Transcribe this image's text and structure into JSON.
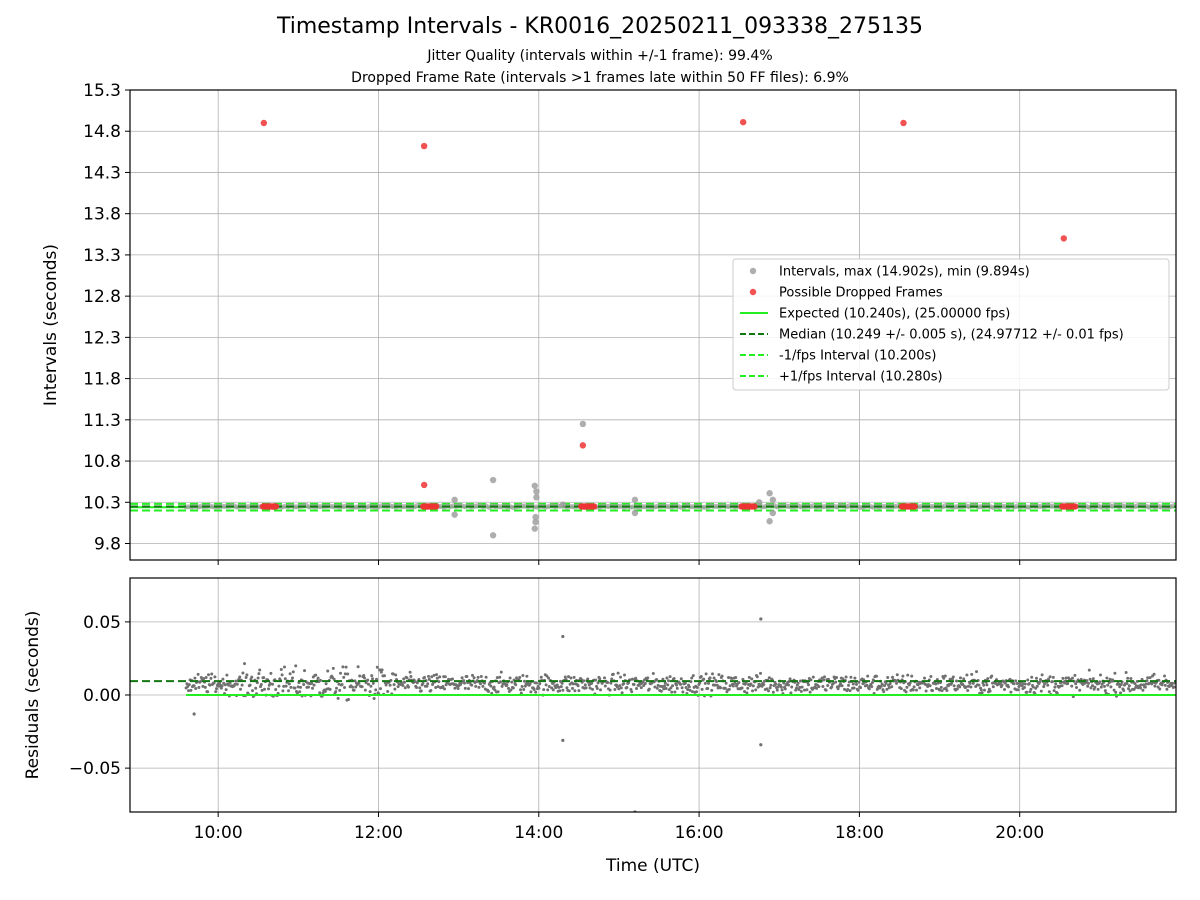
{
  "titles": {
    "main": "Timestamp Intervals - KR0016_20250211_093338_275135",
    "sub1": "Jitter Quality (intervals within +/-1 frame): 99.4%",
    "sub2": "Dropped Frame Rate (intervals >1 frames late within 50 FF files): 6.9%"
  },
  "colors": {
    "normal": "#a0a0a0",
    "dropped": "#ee3333",
    "expected": "#22ee22",
    "median": "#117711",
    "residual": "#707070"
  },
  "chart_data": [
    {
      "type": "scatter",
      "xlabel": "",
      "ylabel": "Intervals (seconds)",
      "xlim": [
        8.9,
        21.95
      ],
      "ylim": [
        9.6,
        15.3
      ],
      "y_ticks": [
        "9.8",
        "10.3",
        "10.8",
        "11.3",
        "11.8",
        "12.3",
        "12.8",
        "13.3",
        "13.8",
        "14.3",
        "14.8",
        "15.3"
      ],
      "grid": true,
      "legend_placement": "center-right",
      "legend": [
        "Intervals, max (14.902s), min (9.894s)",
        "Possible Dropped Frames",
        "Expected (10.240s), (25.00000 fps)",
        "Median (10.249 +/- 0.005 s), (24.97712 +/- 0.01 fps)",
        "-1/fps Interval (10.200s)",
        "+1/fps Interval (10.280s)"
      ],
      "expected": 10.24,
      "median": 10.249,
      "lower_fps_interval": 10.2,
      "upper_fps_interval": 10.28,
      "x_range": [
        9.6,
        21.95
      ],
      "dropped_clusters": [
        10.65,
        12.65,
        14.62,
        16.62,
        18.62,
        20.62
      ],
      "intervals_outliers": [
        {
          "x": 12.95,
          "y": 10.33
        },
        {
          "x": 12.95,
          "y": 10.15
        },
        {
          "x": 13.43,
          "y": 10.57
        },
        {
          "x": 13.43,
          "y": 9.9
        },
        {
          "x": 13.95,
          "y": 10.5
        },
        {
          "x": 13.97,
          "y": 10.43
        },
        {
          "x": 13.97,
          "y": 10.36
        },
        {
          "x": 13.96,
          "y": 10.12
        },
        {
          "x": 13.96,
          "y": 10.06
        },
        {
          "x": 13.95,
          "y": 9.98
        },
        {
          "x": 14.3,
          "y": 10.27
        },
        {
          "x": 14.55,
          "y": 11.25
        },
        {
          "x": 15.2,
          "y": 10.33
        },
        {
          "x": 15.2,
          "y": 10.17
        },
        {
          "x": 16.75,
          "y": 10.3
        },
        {
          "x": 16.88,
          "y": 10.41
        },
        {
          "x": 16.92,
          "y": 10.33
        },
        {
          "x": 16.92,
          "y": 10.17
        },
        {
          "x": 16.88,
          "y": 10.07
        }
      ],
      "dropped_points": [
        {
          "x": 10.57,
          "y": 14.9
        },
        {
          "x": 12.57,
          "y": 14.62
        },
        {
          "x": 12.57,
          "y": 10.51
        },
        {
          "x": 14.55,
          "y": 10.99
        },
        {
          "x": 16.55,
          "y": 14.91
        },
        {
          "x": 18.55,
          "y": 14.9
        },
        {
          "x": 20.55,
          "y": 13.5
        }
      ]
    },
    {
      "type": "scatter",
      "xlabel": "Time (UTC)",
      "ylabel": "Residuals (seconds)",
      "xlim": [
        8.9,
        21.95
      ],
      "ylim": [
        -0.08,
        0.08
      ],
      "x_ticks": [
        {
          "x": 10,
          "label": "10:00"
        },
        {
          "x": 12,
          "label": "12:00"
        },
        {
          "x": 14,
          "label": "14:00"
        },
        {
          "x": 16,
          "label": "16:00"
        },
        {
          "x": 18,
          "label": "18:00"
        },
        {
          "x": 20,
          "label": "20:00"
        }
      ],
      "y_ticks": [
        {
          "y": -0.05,
          "label": "−0.05"
        },
        {
          "y": 0.0,
          "label": "0.00"
        },
        {
          "y": 0.05,
          "label": "0.05"
        }
      ],
      "grid": true,
      "median_residual": 0.0095,
      "expected_residual": 0.0,
      "outliers": [
        {
          "x": 14.3,
          "y": 0.04
        },
        {
          "x": 14.3,
          "y": -0.031
        },
        {
          "x": 16.77,
          "y": 0.052
        },
        {
          "x": 16.77,
          "y": -0.034
        },
        {
          "x": 15.2,
          "y": -0.08
        },
        {
          "x": 9.7,
          "y": -0.013
        }
      ]
    }
  ]
}
